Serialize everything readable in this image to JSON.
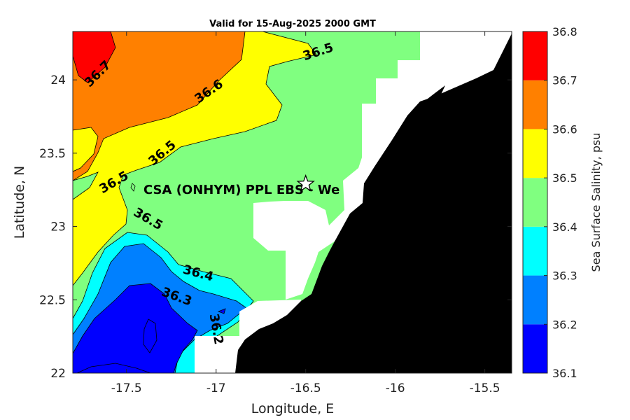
{
  "chart_data": {
    "type": "heatmap",
    "title": "Valid for 15-Aug-2025 2000 GMT",
    "xlabel": "Longitude, E",
    "ylabel": "Latitude, N",
    "xlim": [
      -17.8,
      -15.35
    ],
    "ylim": [
      22.0,
      24.33
    ],
    "xticks": [
      -17.5,
      -17,
      -16.5,
      -16,
      -15.5
    ],
    "xtick_labels": [
      "-17.5",
      "-17",
      "-16.5",
      "-16",
      "-15.5"
    ],
    "yticks": [
      22,
      22.5,
      23,
      23.5,
      24
    ],
    "ytick_labels": [
      "22",
      "22.5",
      "23",
      "23.5",
      "24"
    ],
    "grid": false,
    "colorbar": {
      "label": "Sea Surface Salinity, psu",
      "levels": [
        36.1,
        36.2,
        36.3,
        36.4,
        36.5,
        36.6,
        36.7,
        36.8
      ],
      "level_labels": [
        "36.1",
        "36.2",
        "36.3",
        "36.4",
        "36.5",
        "36.6",
        "36.7",
        "36.8"
      ],
      "colors": [
        "#0000ff",
        "#0080ff",
        "#00ffff",
        "#80ff80",
        "#ffff00",
        "#ff8000",
        "#ff0000"
      ]
    },
    "land_color": "#000000",
    "no_data_color": "#ffffff",
    "contour_labels": [
      {
        "text": "36.7",
        "lon": -17.66,
        "lat": 24.04,
        "angle": -45
      },
      {
        "text": "36.6",
        "lon": -17.04,
        "lat": 23.92,
        "angle": -35
      },
      {
        "text": "36.5",
        "lon": -16.43,
        "lat": 24.19,
        "angle": -18
      },
      {
        "text": "36.5",
        "lon": -17.3,
        "lat": 23.5,
        "angle": -40
      },
      {
        "text": "36.5",
        "lon": -17.57,
        "lat": 23.3,
        "angle": -30
      },
      {
        "text": "36.5",
        "lon": -17.38,
        "lat": 23.05,
        "angle": 30
      },
      {
        "text": "36.4",
        "lon": -17.1,
        "lat": 22.68,
        "angle": 15
      },
      {
        "text": "36.3",
        "lon": -17.22,
        "lat": 22.52,
        "angle": 20
      },
      {
        "text": "36.2",
        "lon": -17.0,
        "lat": 22.3,
        "angle": 80
      }
    ],
    "site": {
      "name": "CSA (ONHYM) PPL EBS  - We",
      "lon": -16.5,
      "lat": 23.29
    }
  }
}
